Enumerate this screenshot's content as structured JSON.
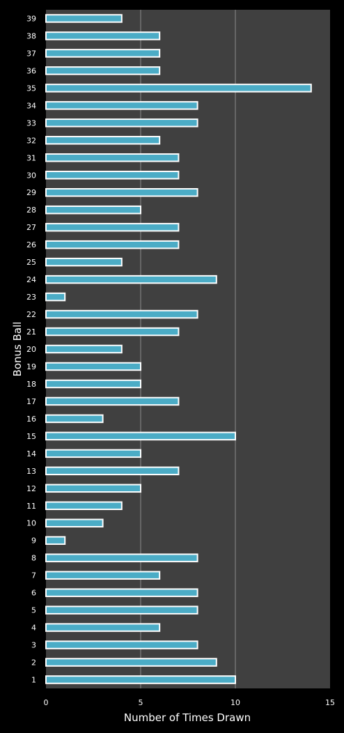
{
  "chart_data": {
    "type": "bar",
    "orientation": "horizontal",
    "xlabel": "Number of Times Drawn",
    "ylabel": "Bonus Ball",
    "xlim": [
      0,
      15
    ],
    "xticks": [
      "0",
      "5",
      "10",
      "15"
    ],
    "grid": "vertical gridlines at major ticks",
    "colors": {
      "background": "#000000",
      "plot_area": "#404040",
      "bar_fill": "#4bacc6",
      "bar_border": "#ffffff",
      "gridline": "#8c8c8c",
      "text": "#ffffff"
    },
    "categories": [
      "1",
      "2",
      "3",
      "4",
      "5",
      "6",
      "7",
      "8",
      "9",
      "10",
      "11",
      "12",
      "13",
      "14",
      "15",
      "16",
      "17",
      "18",
      "19",
      "20",
      "21",
      "22",
      "23",
      "24",
      "25",
      "26",
      "27",
      "28",
      "29",
      "30",
      "31",
      "32",
      "33",
      "34",
      "35",
      "36",
      "37",
      "38",
      "39"
    ],
    "values": [
      10,
      9,
      8,
      6,
      8,
      8,
      6,
      8,
      1,
      3,
      4,
      5,
      7,
      5,
      10,
      3,
      7,
      5,
      5,
      4,
      7,
      8,
      1,
      9,
      4,
      7,
      7,
      5,
      8,
      7,
      7,
      6,
      8,
      8,
      14,
      6,
      6,
      6,
      4
    ]
  }
}
